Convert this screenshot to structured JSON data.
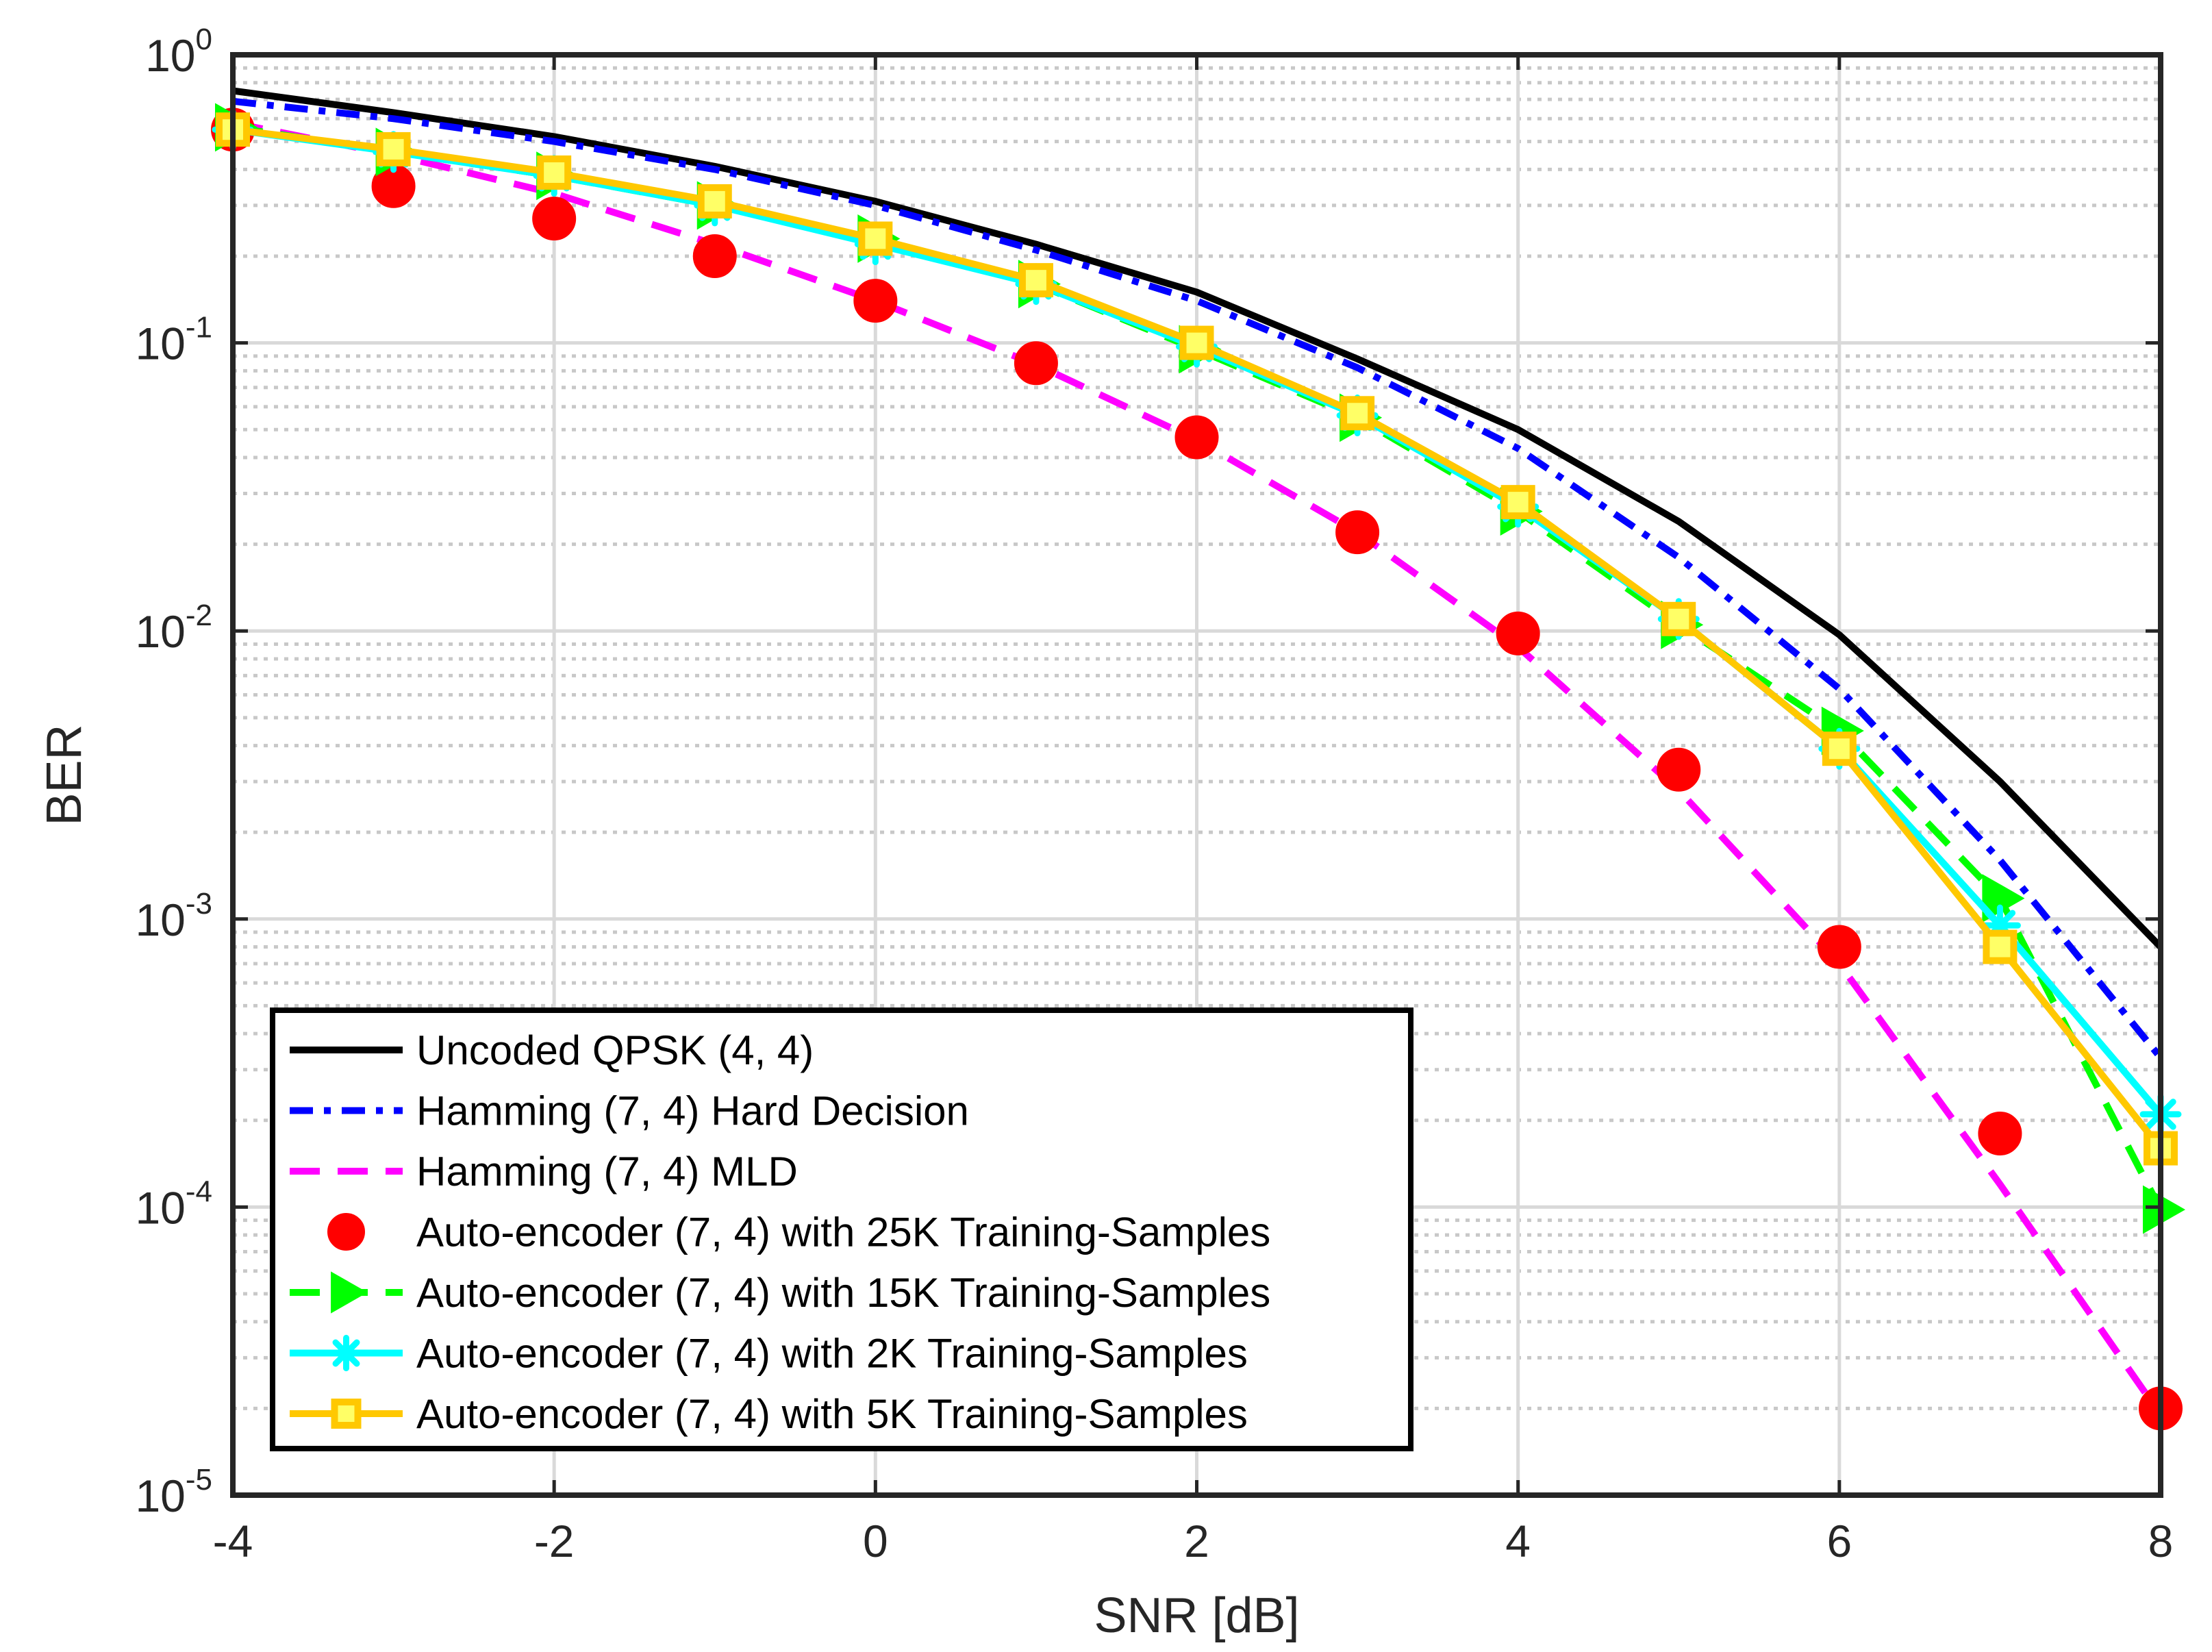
{
  "chart_data": {
    "type": "line",
    "xlabel": "SNR [dB]",
    "ylabel": "BER",
    "xlim": [
      -4,
      8
    ],
    "ylim": [
      1e-05,
      1
    ],
    "yscale": "log",
    "grid": true,
    "minor_grid": true,
    "legend_position": "bottom-left",
    "x_ticks": [
      -4,
      -2,
      0,
      2,
      4,
      6,
      8
    ],
    "x_tick_labels": [
      "-4",
      "-2",
      "0",
      "2",
      "4",
      "6",
      "8"
    ],
    "y_ticks": [
      {
        "value": 1,
        "base": "10",
        "exp": "0"
      },
      {
        "value": 0.1,
        "base": "10",
        "exp": "-1"
      },
      {
        "value": 0.01,
        "base": "10",
        "exp": "-2"
      },
      {
        "value": 0.001,
        "base": "10",
        "exp": "-3"
      },
      {
        "value": 0.0001,
        "base": "10",
        "exp": "-4"
      },
      {
        "value": 1e-05,
        "base": "10",
        "exp": "-5"
      }
    ],
    "series": [
      {
        "name": "Uncoded QPSK (4, 4)",
        "color": "#000000",
        "line": "solid",
        "marker": "none",
        "x": [
          -4,
          -3,
          -2,
          -1,
          0,
          1,
          2,
          3,
          4,
          5,
          6,
          7,
          8
        ],
        "y": [
          0.75,
          0.63,
          0.52,
          0.41,
          0.31,
          0.22,
          0.15,
          0.088,
          0.05,
          0.024,
          0.0097,
          0.003,
          0.0008
        ]
      },
      {
        "name": "Hamming (7, 4) Hard Decision",
        "color": "#0000ff",
        "line": "dashdot",
        "marker": "none",
        "x": [
          -4,
          -3,
          -2,
          -1,
          0,
          1,
          2,
          3,
          4,
          5,
          6,
          7,
          8
        ],
        "y": [
          0.69,
          0.6,
          0.5,
          0.4,
          0.3,
          0.21,
          0.14,
          0.082,
          0.043,
          0.018,
          0.0063,
          0.0016,
          0.00033
        ]
      },
      {
        "name": "Hamming (7, 4) MLD",
        "color": "#ff00ff",
        "line": "dashed",
        "marker": "none",
        "x": [
          -4,
          -3,
          -2,
          -1,
          0,
          1,
          2,
          3,
          4,
          5,
          6,
          7,
          8
        ],
        "y": [
          0.58,
          0.45,
          0.33,
          0.22,
          0.14,
          0.084,
          0.046,
          0.022,
          0.0088,
          0.0028,
          0.0007,
          0.00012,
          1.9e-05
        ]
      },
      {
        "name": "Auto-encoder (7, 4) with 25K Training-Samples",
        "color": "#ff0000",
        "line": "none",
        "marker": "circle",
        "x": [
          -4,
          -3,
          -2,
          -1,
          0,
          1,
          2,
          3,
          4,
          5,
          6,
          7,
          8
        ],
        "y": [
          0.55,
          0.35,
          0.27,
          0.2,
          0.14,
          0.085,
          0.047,
          0.022,
          0.0098,
          0.0033,
          0.0008,
          0.00018,
          2e-05
        ]
      },
      {
        "name": "Auto-encoder (7, 4) with 15K Training-Samples",
        "color": "#00ff00",
        "line": "dashed",
        "marker": "triangle-right",
        "x": [
          -4,
          -3,
          -2,
          -1,
          0,
          1,
          2,
          3,
          4,
          5,
          6,
          7,
          8
        ],
        "y": [
          0.56,
          0.46,
          0.38,
          0.3,
          0.23,
          0.16,
          0.095,
          0.055,
          0.026,
          0.0105,
          0.0045,
          0.00118,
          9.8e-05
        ]
      },
      {
        "name": "Auto-encoder (7, 4) with 2K Training-Samples",
        "color": "#00ffff",
        "line": "solid",
        "marker": "asterisk",
        "x": [
          -4,
          -3,
          -2,
          -1,
          0,
          1,
          2,
          3,
          4,
          5,
          6,
          7,
          8
        ],
        "y": [
          0.55,
          0.46,
          0.38,
          0.3,
          0.22,
          0.16,
          0.097,
          0.056,
          0.027,
          0.011,
          0.0039,
          0.00095,
          0.00021
        ]
      },
      {
        "name": "Auto-encoder (7, 4) with 5K Training-Samples",
        "color": "#ffc800",
        "line": "solid",
        "marker": "square",
        "x": [
          -4,
          -3,
          -2,
          -1,
          0,
          1,
          2,
          3,
          4,
          5,
          6,
          7,
          8
        ],
        "y": [
          0.55,
          0.47,
          0.39,
          0.31,
          0.23,
          0.165,
          0.1,
          0.057,
          0.028,
          0.011,
          0.0039,
          0.0008,
          0.00016
        ]
      }
    ]
  }
}
